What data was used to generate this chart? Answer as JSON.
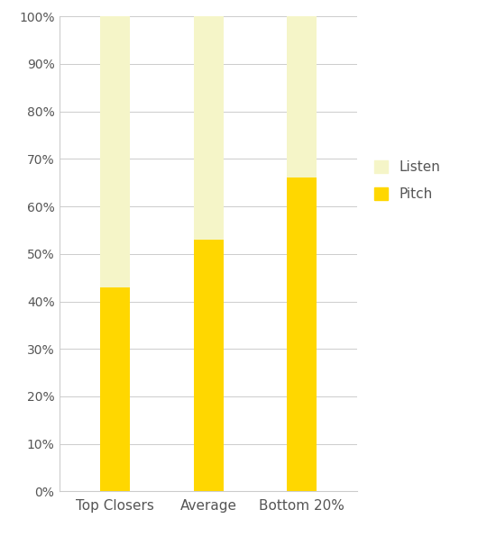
{
  "categories": [
    "Top Closers",
    "Average",
    "Bottom 20%"
  ],
  "pitch_values": [
    43,
    53,
    66
  ],
  "listen_values": [
    57,
    47,
    34
  ],
  "pitch_color": "#FFD700",
  "listen_color": "#F5F5C8",
  "background_color": "#FFFFFF",
  "grid_color": "#CCCCCC",
  "text_color": "#555555",
  "legend_labels": [
    "Listen",
    "Pitch"
  ],
  "yticks": [
    0,
    10,
    20,
    30,
    40,
    50,
    60,
    70,
    80,
    90,
    100
  ],
  "ylim": [
    0,
    100
  ],
  "bar_width": 0.32,
  "figsize": [
    5.5,
    6.06
  ],
  "dpi": 100,
  "tick_fontsize": 10,
  "xlabel_fontsize": 11
}
